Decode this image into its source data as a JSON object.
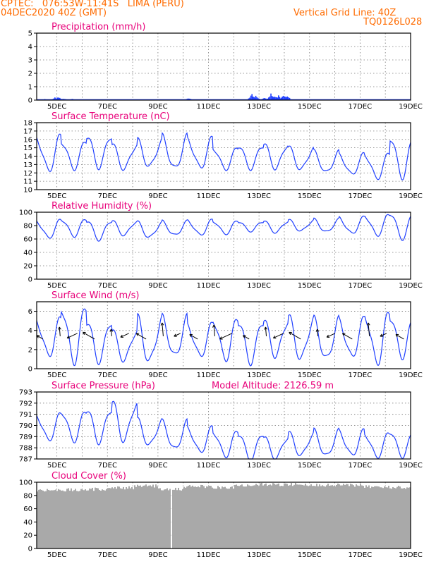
{
  "header": {
    "line1": "CPTEC:   076:53W-11:41S   LIMA (PERU)",
    "line2": "04DEC2020 40Z (GMT)",
    "grid_note": "Vertical Grid Line: 40Z",
    "code": "TQ0126L028"
  },
  "x_labels": [
    "5DEC",
    "7DEC",
    "9DEC",
    "11DEC",
    "13DEC",
    "15DEC",
    "17DEC",
    "19DEC"
  ],
  "colors": {
    "line": "#1f3fff",
    "cloud": "#a9a9a9",
    "title": "#e8007a",
    "header": "#ff6b00"
  },
  "chart_data": [
    {
      "type": "bar",
      "title": "Precipitation (mm/h)",
      "ylim": [
        0,
        5
      ],
      "yticks": [
        0,
        1,
        2,
        3,
        4,
        5
      ],
      "x_range_days": [
        4.2,
        19.0
      ],
      "events": [
        {
          "day": 4.5,
          "value": 0.1
        },
        {
          "day": 4.9,
          "value": 0.2
        },
        {
          "day": 5.05,
          "value": 0.25
        },
        {
          "day": 5.25,
          "value": 0.15
        },
        {
          "day": 5.6,
          "value": 0.1
        },
        {
          "day": 10.2,
          "value": 0.15
        },
        {
          "day": 12.7,
          "value": 0.5
        },
        {
          "day": 12.85,
          "value": 0.35
        },
        {
          "day": 13.2,
          "value": 0.25
        },
        {
          "day": 13.45,
          "value": 0.6
        },
        {
          "day": 13.6,
          "value": 0.45
        },
        {
          "day": 13.75,
          "value": 0.4
        },
        {
          "day": 13.95,
          "value": 0.45
        },
        {
          "day": 14.1,
          "value": 0.3
        }
      ]
    },
    {
      "type": "line",
      "title": "Surface Temperature (nC)",
      "ylim": [
        10,
        18
      ],
      "yticks": [
        10,
        11,
        12,
        13,
        14,
        15,
        16,
        17,
        18
      ],
      "daily_max": [
        12.6,
        14.2,
        14.5,
        16.4,
        15.8,
        16.5,
        15.4,
        15.9,
        16.3,
        16.1,
        15.0,
        15.3,
        15.5,
        15.0,
        14.5,
        14.2,
        14.3,
        16.4,
        16.8
      ],
      "daily_min": [
        11.5,
        11.6,
        12.4,
        12.3,
        12.6,
        12.8,
        12.5,
        12.7,
        12.4,
        12.6,
        12.5,
        12.6,
        12.6,
        12.4,
        12.0,
        11.8,
        11.4,
        11.7,
        12.3
      ]
    },
    {
      "type": "line",
      "title": "Relative Humidity (%)",
      "ylim": [
        0,
        100
      ],
      "yticks": [
        0,
        20,
        40,
        60,
        80,
        100
      ],
      "daily_max": [
        98,
        100,
        95,
        88,
        90,
        88,
        87,
        85,
        86,
        88,
        87,
        86,
        87,
        88,
        89,
        92,
        96,
        100,
        90
      ],
      "daily_min": [
        82,
        80,
        72,
        62,
        65,
        60,
        66,
        62,
        65,
        66,
        68,
        72,
        70,
        72,
        70,
        68,
        66,
        62,
        58
      ]
    },
    {
      "type": "line",
      "title": "Surface Wind (m/s)",
      "ylim": [
        0,
        7
      ],
      "yticks": [
        0,
        2,
        4,
        6
      ],
      "daily_max": [
        2.6,
        5.5,
        5.6,
        5.2,
        6.5,
        5.0,
        4.0,
        5.3,
        5.3,
        4.6,
        5.2,
        5.0,
        5.1,
        5.3,
        5.1,
        5.1,
        5.8,
        5.5,
        5.6
      ],
      "daily_min": [
        1.6,
        1.3,
        1.0,
        1.4,
        0.9,
        0.9,
        0.9,
        0.7,
        1.2,
        1.3,
        1.1,
        0.8,
        1.4,
        1.0,
        0.9,
        1.2,
        0.7,
        1.4,
        0.4
      ]
    },
    {
      "type": "line",
      "title": "Surface Pressure (hPa)",
      "subtitle": "Model Altitude: 2126.59  m",
      "ylim": [
        787,
        793
      ],
      "yticks": [
        787,
        788,
        789,
        790,
        791,
        792,
        793
      ],
      "daily_max": [
        789.3,
        790.5,
        792.0,
        791.0,
        791.3,
        791.5,
        792.1,
        790.5,
        790.3,
        789.8,
        789.5,
        789.3,
        789.0,
        789.3,
        789.5,
        789.5,
        789.3,
        789.5,
        789.0
      ],
      "daily_min": [
        788.0,
        788.8,
        789.2,
        788.7,
        788.7,
        788.6,
        788.7,
        788.2,
        787.8,
        787.6,
        787.3,
        787.0,
        787.1,
        787.3,
        787.2,
        787.3,
        787.2,
        787.3,
        787.2
      ]
    },
    {
      "type": "area",
      "title": "Cloud Cover (%)",
      "ylim": [
        0,
        100
      ],
      "yticks": [
        0,
        20,
        40,
        60,
        80,
        100
      ],
      "daily_values": [
        90,
        90,
        89,
        89,
        89,
        90,
        92,
        95,
        90,
        94,
        93,
        96,
        97,
        97,
        96,
        96,
        94,
        93,
        91
      ]
    }
  ]
}
